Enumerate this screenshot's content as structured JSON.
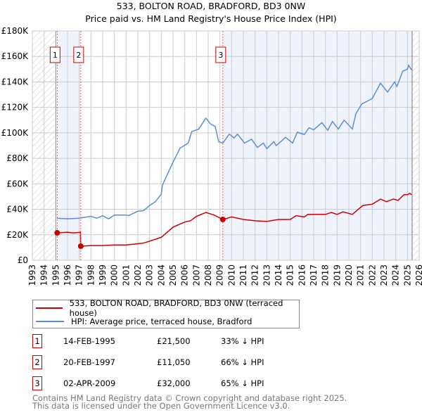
{
  "title": {
    "line1": "533, BOLTON ROAD, BRADFORD, BD3 0NW",
    "line2": "Price paid vs. HM Land Registry's House Price Index (HPI)"
  },
  "chart_data": {
    "type": "line",
    "title": "533, BOLTON ROAD, BRADFORD, BD3 0NW - Price paid vs. HM Land Registry's House Price Index (HPI)",
    "xlim": [
      1993,
      2026
    ],
    "ylim": [
      0,
      180000
    ],
    "grid": true,
    "x_ticks": [
      "1993",
      "1994",
      "1995",
      "1996",
      "1997",
      "1998",
      "1999",
      "2000",
      "2001",
      "2002",
      "2003",
      "2004",
      "2005",
      "2006",
      "2007",
      "2008",
      "2009",
      "2010",
      "2011",
      "2012",
      "2013",
      "2014",
      "2015",
      "2016",
      "2017",
      "2018",
      "2019",
      "2020",
      "2021",
      "2022",
      "2023",
      "2024",
      "2025",
      "2026"
    ],
    "y_ticks": [
      {
        "v": 0,
        "label": "£0"
      },
      {
        "v": 20000,
        "label": "£20K"
      },
      {
        "v": 40000,
        "label": "£40K"
      },
      {
        "v": 60000,
        "label": "£60K"
      },
      {
        "v": 80000,
        "label": "£80K"
      },
      {
        "v": 100000,
        "label": "£100K"
      },
      {
        "v": 120000,
        "label": "£120K"
      },
      {
        "v": 140000,
        "label": "£140K"
      },
      {
        "v": 160000,
        "label": "£160K"
      },
      {
        "v": 180000,
        "label": "£180K"
      }
    ],
    "data_range": [
      1995.0,
      2025.4
    ],
    "series": [
      {
        "name": "533, BOLTON ROAD, BRADFORD, BD3 0NW (terraced house)",
        "color": "#cc0000",
        "points": [
          [
            1995.12,
            21500
          ],
          [
            1996,
            22000
          ],
          [
            1996.5,
            21500
          ],
          [
            1997.1,
            22000
          ],
          [
            1997.13,
            11050
          ],
          [
            1998,
            11500
          ],
          [
            1999,
            11500
          ],
          [
            2000,
            12000
          ],
          [
            2001,
            12000
          ],
          [
            2002,
            13000
          ],
          [
            2002.5,
            13500
          ],
          [
            2003,
            15000
          ],
          [
            2004,
            18000
          ],
          [
            2004.5,
            22000
          ],
          [
            2005,
            26000
          ],
          [
            2006,
            30000
          ],
          [
            2006.5,
            31000
          ],
          [
            2007,
            34500
          ],
          [
            2007.8,
            37500
          ],
          [
            2008.5,
            35500
          ],
          [
            2009.25,
            32000
          ],
          [
            2010,
            34000
          ],
          [
            2011,
            32000
          ],
          [
            2012,
            31000
          ],
          [
            2013,
            30500
          ],
          [
            2014,
            32000
          ],
          [
            2015,
            32000
          ],
          [
            2015.5,
            35000
          ],
          [
            2016.2,
            34000
          ],
          [
            2016.5,
            36000
          ],
          [
            2017,
            36000
          ],
          [
            2018,
            36000
          ],
          [
            2018.5,
            37500
          ],
          [
            2019,
            36000
          ],
          [
            2019.5,
            38000
          ],
          [
            2020.3,
            36000
          ],
          [
            2020.8,
            40000
          ],
          [
            2021.2,
            43000
          ],
          [
            2022,
            44000
          ],
          [
            2022.7,
            48000
          ],
          [
            2023.2,
            46000
          ],
          [
            2023.8,
            48000
          ],
          [
            2024.2,
            47000
          ],
          [
            2024.7,
            51500
          ],
          [
            2025,
            51500
          ],
          [
            2025.2,
            52500
          ],
          [
            2025.35,
            51500
          ]
        ]
      },
      {
        "name": "HPI: Average price, terraced house, Bradford",
        "color": "#5b8fd4",
        "points": [
          [
            1995.1,
            33000
          ],
          [
            1996,
            32500
          ],
          [
            1997,
            33000
          ],
          [
            1998,
            34500
          ],
          [
            1998.5,
            33000
          ],
          [
            1999,
            35000
          ],
          [
            1999.5,
            32500
          ],
          [
            2000,
            35500
          ],
          [
            2001,
            35500
          ],
          [
            2001.2,
            35000
          ],
          [
            2002,
            38500
          ],
          [
            2002.5,
            39000
          ],
          [
            2003,
            43000
          ],
          [
            2003.5,
            46000
          ],
          [
            2004,
            52000
          ],
          [
            2004.1,
            59000
          ],
          [
            2005,
            77000
          ],
          [
            2005.6,
            88000
          ],
          [
            2006.3,
            92000
          ],
          [
            2006.6,
            101000
          ],
          [
            2007.2,
            103000
          ],
          [
            2007.8,
            111600
          ],
          [
            2008.2,
            107000
          ],
          [
            2008.6,
            105000
          ],
          [
            2008.9,
            93000
          ],
          [
            2009.25,
            92000
          ],
          [
            2009.8,
            99000
          ],
          [
            2010.2,
            96000
          ],
          [
            2010.5,
            99000
          ],
          [
            2011.1,
            92000
          ],
          [
            2011.7,
            95000
          ],
          [
            2012.2,
            88500
          ],
          [
            2012.7,
            92000
          ],
          [
            2013,
            87600
          ],
          [
            2013.6,
            93000
          ],
          [
            2013.8,
            90000
          ],
          [
            2014.3,
            94000
          ],
          [
            2014.6,
            96500
          ],
          [
            2015.2,
            92000
          ],
          [
            2015.6,
            100500
          ],
          [
            2016.2,
            98700
          ],
          [
            2016.6,
            104000
          ],
          [
            2017,
            102400
          ],
          [
            2017.7,
            108000
          ],
          [
            2018.2,
            102000
          ],
          [
            2018.6,
            109000
          ],
          [
            2019.1,
            103000
          ],
          [
            2019.6,
            110000
          ],
          [
            2020.3,
            103000
          ],
          [
            2020.6,
            115000
          ],
          [
            2021.1,
            122700
          ],
          [
            2021.5,
            124500
          ],
          [
            2022,
            127000
          ],
          [
            2022.7,
            139000
          ],
          [
            2023.3,
            132000
          ],
          [
            2023.9,
            140000
          ],
          [
            2024.1,
            136500
          ],
          [
            2024.6,
            148500
          ],
          [
            2025,
            150000
          ],
          [
            2025.1,
            153000
          ],
          [
            2025.35,
            149400
          ]
        ]
      }
    ],
    "sales": [
      {
        "id": "1",
        "x": 1995.12,
        "price": 21500
      },
      {
        "id": "2",
        "x": 1997.13,
        "price": 11050
      },
      {
        "id": "3",
        "x": 2009.25,
        "price": 32000
      }
    ],
    "colors": {
      "sale": "#cc0000",
      "hpi": "#5b8fd4",
      "band": "#eef3fc"
    }
  },
  "legend": [
    {
      "label": "533, BOLTON ROAD, BRADFORD, BD3 0NW (terraced house)",
      "color": "#cc0000"
    },
    {
      "label": "HPI: Average price, terraced house, Bradford",
      "color": "#5b8fd4"
    }
  ],
  "transactions": [
    {
      "num": "1",
      "date": "14-FEB-1995",
      "price": "£21,500",
      "hpi": "33% ↓ HPI"
    },
    {
      "num": "2",
      "date": "20-FEB-1997",
      "price": "£11,050",
      "hpi": "66% ↓ HPI"
    },
    {
      "num": "3",
      "date": "02-APR-2009",
      "price": "£32,000",
      "hpi": "65% ↓ HPI"
    }
  ],
  "footer": {
    "line1": "Contains HM Land Registry data © Crown copyright and database right 2025.",
    "line2": "This data is licensed under the Open Government Licence v3.0."
  }
}
